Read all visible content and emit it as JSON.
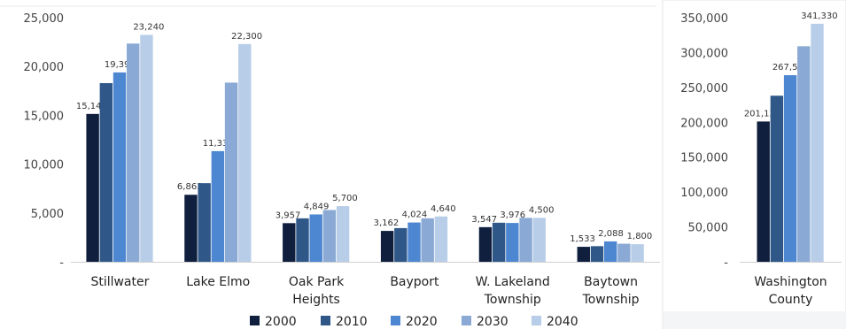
{
  "chart_data": [
    {
      "type": "bar",
      "categories": [
        "Stillwater",
        "Lake Elmo",
        "Oak Park Heights",
        "Bayport",
        "W. Lakeland Township",
        "Baytown Township"
      ],
      "category_lines": [
        [
          "Stillwater"
        ],
        [
          "Lake Elmo"
        ],
        [
          "Oak Park",
          "Heights"
        ],
        [
          "Bayport"
        ],
        [
          "W. Lakeland",
          "Township"
        ],
        [
          "Baytown",
          "Township"
        ]
      ],
      "series": [
        {
          "name": "2000",
          "values": [
            15143,
            6863,
            3957,
            3162,
            3547,
            1533
          ]
        },
        {
          "name": "2010",
          "values": [
            18300,
            8050,
            4450,
            3450,
            4000,
            1600
          ]
        },
        {
          "name": "2020",
          "values": [
            19394,
            11335,
            4849,
            4024,
            3976,
            2088
          ]
        },
        {
          "name": "2030",
          "values": [
            22350,
            18350,
            5300,
            4450,
            4500,
            1850
          ]
        },
        {
          "name": "2040",
          "values": [
            23240,
            22300,
            5700,
            4640,
            4500,
            1800
          ]
        }
      ],
      "data_labels": [
        [
          "15,143",
          "6,863",
          "3,957",
          "3,162",
          "3,547",
          "1,533"
        ],
        [
          "",
          "",
          "",
          "",
          "",
          ""
        ],
        [
          "19,394",
          "11,335",
          "4,849",
          "4,024",
          "3,976",
          "2,088"
        ],
        [
          "",
          "",
          "",
          "",
          "",
          ""
        ],
        [
          "23,240",
          "22,300",
          "5,700",
          "4,640",
          "4,500",
          "1,800"
        ]
      ],
      "ylim": [
        0,
        25000
      ],
      "yticks": [
        "-",
        "5,000",
        "10,000",
        "15,000",
        "20,000",
        "25,000"
      ],
      "grid": false,
      "legend_position": "bottom"
    },
    {
      "type": "bar",
      "categories": [
        "Washington County"
      ],
      "category_lines": [
        [
          "Washington",
          "County"
        ]
      ],
      "series": [
        {
          "name": "2000",
          "values": [
            201130
          ]
        },
        {
          "name": "2010",
          "values": [
            238136
          ]
        },
        {
          "name": "2020",
          "values": [
            267568
          ]
        },
        {
          "name": "2030",
          "values": [
            309000
          ]
        },
        {
          "name": "2040",
          "values": [
            341330
          ]
        }
      ],
      "data_labels": [
        [
          "201,130"
        ],
        [
          ""
        ],
        [
          "267,568"
        ],
        [
          ""
        ],
        [
          "341,330"
        ]
      ],
      "ylim": [
        0,
        350000
      ],
      "yticks": [
        "-",
        "50,000",
        "100,000",
        "150,000",
        "200,000",
        "250,000",
        "300,000",
        "350,000"
      ],
      "grid": false
    }
  ],
  "legend": [
    "2000",
    "2010",
    "2020",
    "2030",
    "2040"
  ],
  "colors": [
    "#0f1f3d",
    "#2f5888",
    "#4e87d1",
    "#8aa9d4",
    "#b7cde8"
  ]
}
